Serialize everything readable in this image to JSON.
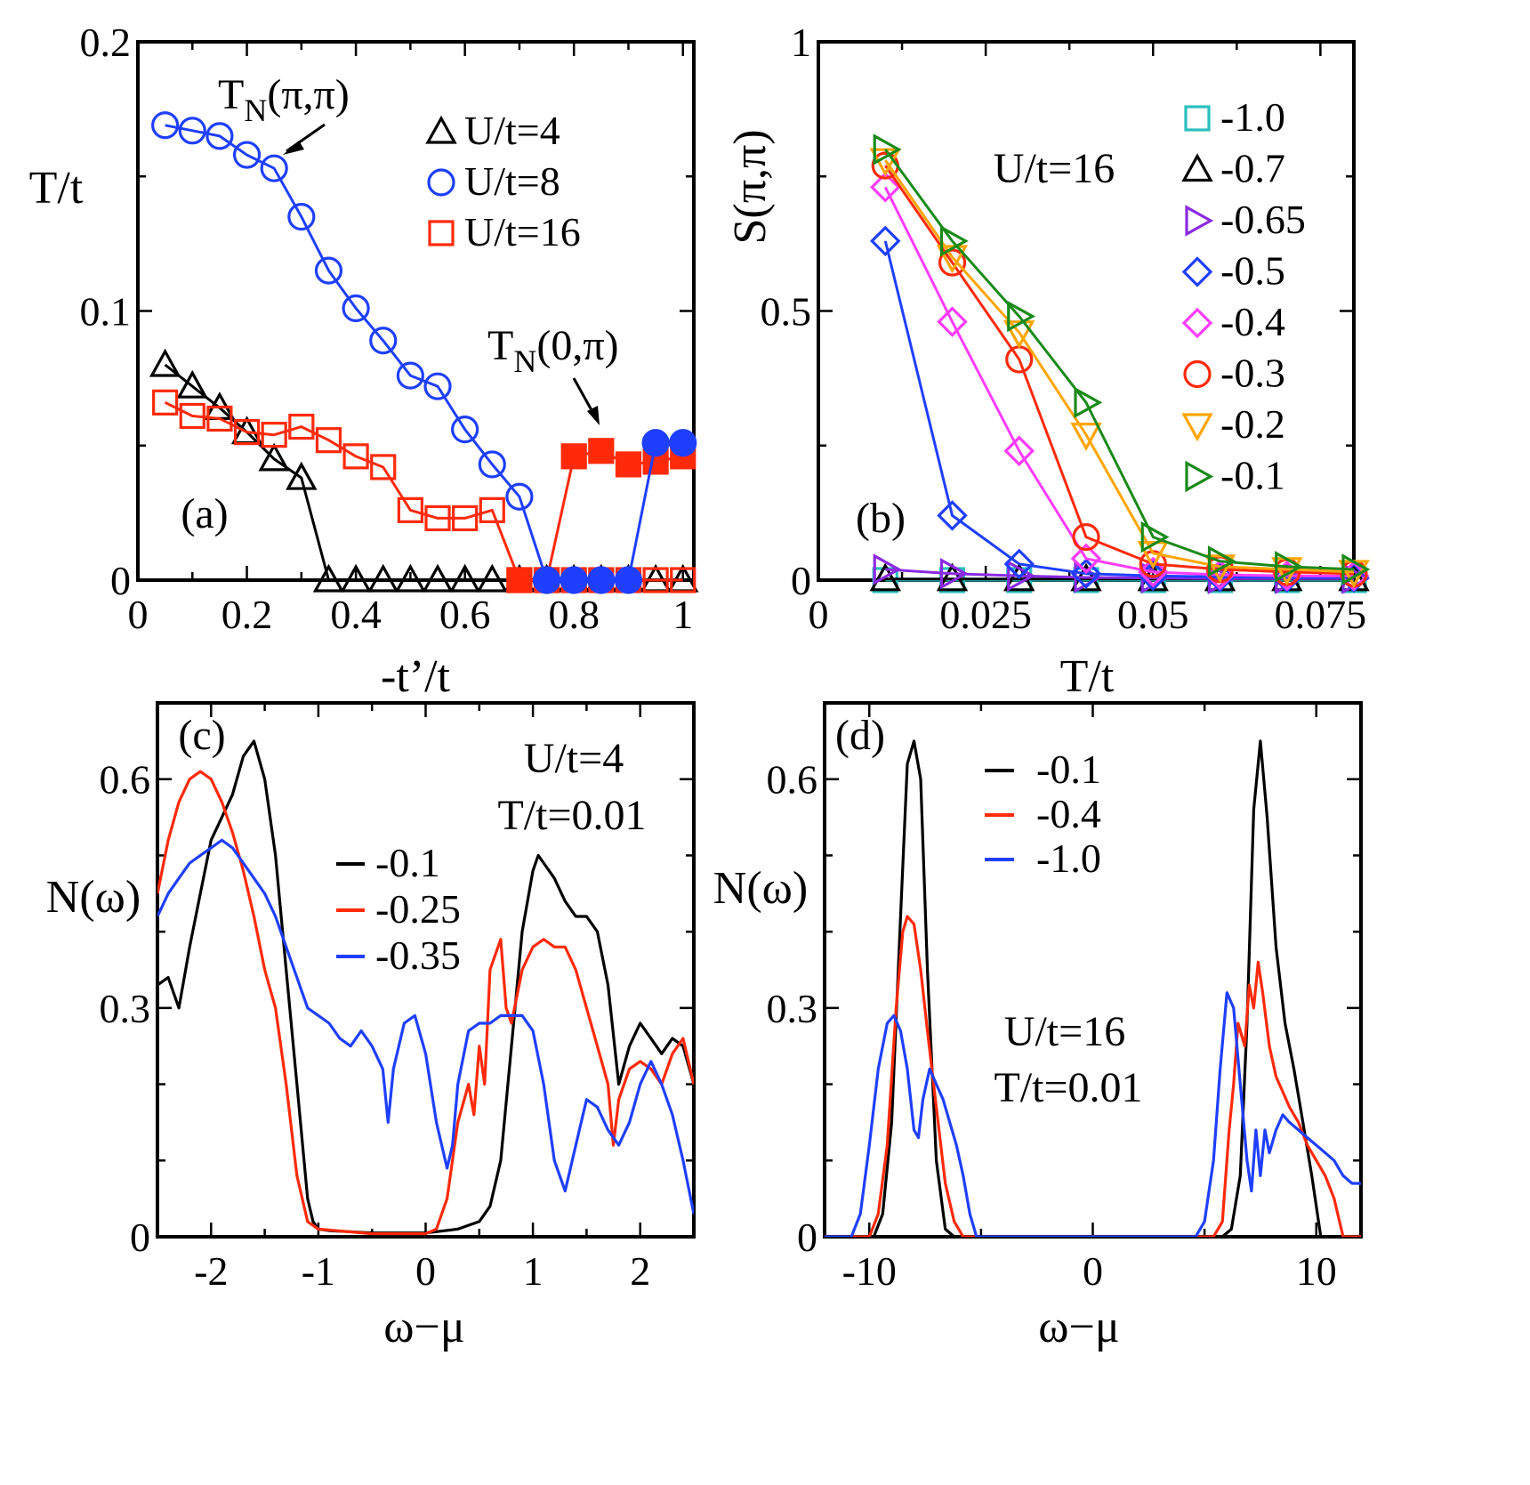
{
  "colors": {
    "black": "#000000",
    "blue": "#1f3fff",
    "red": "#ff2a0a",
    "cyan": "#2bbfbf",
    "purple": "#8a2be2",
    "magenta": "#ff3cff",
    "orange": "#ffa500",
    "green": "#1a8a1a"
  },
  "chart_data": [
    {
      "id": "a",
      "type": "scatter",
      "panel_label": "(a)",
      "xlabel": "-t’/t",
      "ylabel": "T/t",
      "xlim": [
        0,
        1.02
      ],
      "ylim": [
        0,
        0.2
      ],
      "xticks": [
        0,
        0.2,
        0.4,
        0.6,
        0.8,
        1
      ],
      "xtick_labels": [
        "0",
        "0.2",
        "0.4",
        "0.6",
        "0.8",
        "1"
      ],
      "yticks": [
        0,
        0.1,
        0.2
      ],
      "ytick_labels": [
        "0",
        "0.1",
        "0.2"
      ],
      "annotations": [
        {
          "base": "T",
          "sub": "N",
          "rest": "(π,π)"
        },
        {
          "base": "T",
          "sub": "N",
          "rest": "(0,π)"
        }
      ],
      "series": [
        {
          "name": "U/t=4",
          "color": "#000000",
          "marker": "triangle",
          "filled": false,
          "x": [
            0.05,
            0.1,
            0.15,
            0.2,
            0.25,
            0.3,
            0.35,
            0.4,
            0.45,
            0.5,
            0.55,
            0.6,
            0.65,
            0.7,
            0.75,
            0.8,
            0.85,
            0.9,
            0.95,
            1.0
          ],
          "y": [
            0.08,
            0.072,
            0.064,
            0.055,
            0.045,
            0.038,
            0,
            0,
            0,
            0,
            0,
            0,
            0,
            0,
            0,
            0,
            0,
            0,
            0,
            0
          ]
        },
        {
          "name": "U/t=8",
          "color": "#1f3fff",
          "marker": "circle",
          "filled": false,
          "x": [
            0.05,
            0.1,
            0.15,
            0.2,
            0.25,
            0.3,
            0.35,
            0.4,
            0.45,
            0.5,
            0.55,
            0.6,
            0.65,
            0.7,
            0.75
          ],
          "y": [
            0.169,
            0.167,
            0.165,
            0.158,
            0.153,
            0.135,
            0.115,
            0.101,
            0.089,
            0.076,
            0.072,
            0.056,
            0.043,
            0.031,
            0
          ]
        },
        {
          "name": "U/t=16",
          "color": "#ff2a0a",
          "marker": "square",
          "filled": false,
          "x": [
            0.05,
            0.1,
            0.15,
            0.2,
            0.25,
            0.3,
            0.35,
            0.4,
            0.45,
            0.5,
            0.55,
            0.6,
            0.65,
            0.7,
            0.75,
            0.8,
            0.85,
            0.9,
            0.95,
            1.0
          ],
          "y": [
            0.066,
            0.061,
            0.06,
            0.055,
            0.054,
            0.057,
            0.052,
            0.046,
            0.042,
            0.026,
            0.023,
            0.023,
            0.026,
            0,
            0,
            0,
            0,
            0,
            0,
            0
          ]
        },
        {
          "name": "",
          "color": "#ff2a0a",
          "marker": "square",
          "filled": true,
          "x": [
            0.7,
            0.75,
            0.8,
            0.85,
            0.9,
            0.95,
            1.0
          ],
          "y": [
            0,
            0,
            0.046,
            0.048,
            0.043,
            0.044,
            0.046
          ]
        },
        {
          "name": "",
          "color": "#1f3fff",
          "marker": "circle",
          "filled": true,
          "x": [
            0.75,
            0.8,
            0.85,
            0.9,
            0.95,
            1.0
          ],
          "y": [
            0,
            0,
            0,
            0,
            0.051,
            0.051
          ]
        }
      ]
    },
    {
      "id": "b",
      "type": "scatter",
      "panel_label": "(b)",
      "xlabel": "T/t",
      "ylabel": "S(π,π)",
      "xlim": [
        0,
        0.08
      ],
      "ylim": [
        0,
        1
      ],
      "xticks": [
        0,
        0.025,
        0.05,
        0.075
      ],
      "xtick_labels": [
        "0",
        "0.025",
        "0.05",
        "0.075"
      ],
      "yticks": [
        0,
        0.5,
        1
      ],
      "ytick_labels": [
        "0",
        "0.5",
        "1"
      ],
      "annotation": "U/t=16",
      "series": [
        {
          "name": "-1.0",
          "color": "#2bbfbf",
          "marker": "square",
          "x": [
            0.01,
            0.02,
            0.03,
            0.04,
            0.05,
            0.06,
            0.07,
            0.08
          ],
          "y": [
            0.0,
            0.0,
            0.0,
            0.0,
            0.0,
            0.0,
            0.0,
            0.0
          ]
        },
        {
          "name": "-0.7",
          "color": "#000000",
          "marker": "triangle-up",
          "x": [
            0.01,
            0.02,
            0.03,
            0.04,
            0.05,
            0.06,
            0.07,
            0.08
          ],
          "y": [
            0.002,
            0.002,
            0.002,
            0.002,
            0.002,
            0.002,
            0.002,
            0.002
          ]
        },
        {
          "name": "-0.65",
          "color": "#8a2be2",
          "marker": "triangle-right",
          "x": [
            0.01,
            0.02,
            0.03,
            0.04,
            0.05,
            0.06,
            0.07,
            0.08
          ],
          "y": [
            0.02,
            0.012,
            0.008,
            0.005,
            0.004,
            0.003,
            0.003,
            0.003
          ]
        },
        {
          "name": "-0.5",
          "color": "#1f3fff",
          "marker": "diamond",
          "x": [
            0.01,
            0.02,
            0.03,
            0.04,
            0.05,
            0.06,
            0.07,
            0.08
          ],
          "y": [
            0.63,
            0.12,
            0.03,
            0.012,
            0.008,
            0.006,
            0.005,
            0.005
          ]
        },
        {
          "name": "-0.4",
          "color": "#ff3cff",
          "marker": "diamond",
          "x": [
            0.01,
            0.02,
            0.03,
            0.04,
            0.05,
            0.06,
            0.07,
            0.08
          ],
          "y": [
            0.73,
            0.48,
            0.24,
            0.04,
            0.015,
            0.01,
            0.008,
            0.008
          ]
        },
        {
          "name": "-0.3",
          "color": "#ff2a0a",
          "marker": "circle",
          "x": [
            0.01,
            0.02,
            0.03,
            0.04,
            0.05,
            0.06,
            0.07,
            0.08
          ],
          "y": [
            0.77,
            0.59,
            0.41,
            0.08,
            0.03,
            0.02,
            0.015,
            0.012
          ]
        },
        {
          "name": "-0.2",
          "color": "#ffa500",
          "marker": "triangle-down",
          "x": [
            0.01,
            0.02,
            0.03,
            0.04,
            0.05,
            0.06,
            0.07,
            0.08
          ],
          "y": [
            0.78,
            0.6,
            0.46,
            0.27,
            0.05,
            0.025,
            0.02,
            0.015
          ]
        },
        {
          "name": "-0.1",
          "color": "#1a8a1a",
          "marker": "triangle-right",
          "x": [
            0.01,
            0.02,
            0.03,
            0.04,
            0.05,
            0.06,
            0.07,
            0.08
          ],
          "y": [
            0.8,
            0.63,
            0.49,
            0.33,
            0.08,
            0.035,
            0.025,
            0.02
          ]
        }
      ]
    },
    {
      "id": "c",
      "type": "line",
      "panel_label": "(c)",
      "xlabel": "ω−μ",
      "ylabel": "N(ω)",
      "xlim": [
        -2.5,
        2.5
      ],
      "ylim": [
        0,
        0.7
      ],
      "xticks": [
        -2,
        -1,
        0,
        1,
        2
      ],
      "xtick_labels": [
        "-2",
        "-1",
        "0",
        "1",
        "2"
      ],
      "yticks": [
        0,
        0.3,
        0.6
      ],
      "ytick_labels": [
        "0",
        "0.3",
        "0.6"
      ],
      "annotation_lines": [
        "U/t=4",
        "T/t=0.01"
      ],
      "series": [
        {
          "name": "-0.1",
          "color": "#000000",
          "x": [
            -2.5,
            -2.4,
            -2.3,
            -2.2,
            -2.1,
            -2.0,
            -1.9,
            -1.8,
            -1.7,
            -1.6,
            -1.5,
            -1.4,
            -1.3,
            -1.2,
            -1.1,
            -1.05,
            -1.0,
            -0.9,
            -0.5,
            0,
            0.3,
            0.5,
            0.6,
            0.7,
            0.8,
            0.9,
            1.0,
            1.05,
            1.1,
            1.2,
            1.3,
            1.4,
            1.5,
            1.6,
            1.7,
            1.8,
            1.9,
            2.0,
            2.1,
            2.2,
            2.3,
            2.4,
            2.5
          ],
          "y": [
            0.33,
            0.34,
            0.3,
            0.38,
            0.45,
            0.52,
            0.55,
            0.58,
            0.63,
            0.65,
            0.6,
            0.5,
            0.35,
            0.2,
            0.05,
            0.02,
            0.01,
            0.008,
            0.005,
            0.005,
            0.01,
            0.02,
            0.04,
            0.1,
            0.25,
            0.4,
            0.48,
            0.5,
            0.49,
            0.47,
            0.44,
            0.42,
            0.42,
            0.4,
            0.33,
            0.2,
            0.25,
            0.28,
            0.26,
            0.24,
            0.26,
            0.25,
            0.2
          ]
        },
        {
          "name": "-0.25",
          "color": "#ff2a0a",
          "x": [
            -2.5,
            -2.4,
            -2.3,
            -2.2,
            -2.1,
            -2.0,
            -1.9,
            -1.8,
            -1.7,
            -1.6,
            -1.5,
            -1.4,
            -1.3,
            -1.2,
            -1.1,
            -1.0,
            -0.5,
            0,
            0.1,
            0.2,
            0.3,
            0.4,
            0.45,
            0.5,
            0.55,
            0.6,
            0.7,
            0.75,
            0.8,
            0.9,
            1.0,
            1.1,
            1.2,
            1.3,
            1.4,
            1.5,
            1.6,
            1.7,
            1.75,
            1.8,
            1.9,
            2.0,
            2.1,
            2.2,
            2.3,
            2.4,
            2.5
          ],
          "y": [
            0.45,
            0.52,
            0.57,
            0.6,
            0.61,
            0.6,
            0.57,
            0.53,
            0.48,
            0.42,
            0.35,
            0.3,
            0.2,
            0.08,
            0.02,
            0.01,
            0.004,
            0.004,
            0.01,
            0.05,
            0.15,
            0.2,
            0.16,
            0.25,
            0.2,
            0.35,
            0.39,
            0.3,
            0.28,
            0.35,
            0.38,
            0.39,
            0.38,
            0.38,
            0.35,
            0.3,
            0.25,
            0.2,
            0.12,
            0.18,
            0.22,
            0.23,
            0.22,
            0.2,
            0.24,
            0.26,
            0.2
          ]
        },
        {
          "name": "-0.35",
          "color": "#1f3fff",
          "x": [
            -2.5,
            -2.4,
            -2.3,
            -2.2,
            -2.1,
            -2.0,
            -1.9,
            -1.8,
            -1.7,
            -1.6,
            -1.5,
            -1.4,
            -1.3,
            -1.2,
            -1.1,
            -1.0,
            -0.9,
            -0.8,
            -0.7,
            -0.6,
            -0.5,
            -0.4,
            -0.35,
            -0.3,
            -0.2,
            -0.1,
            0,
            0.1,
            0.2,
            0.25,
            0.3,
            0.4,
            0.5,
            0.6,
            0.7,
            0.8,
            0.9,
            1.0,
            1.1,
            1.2,
            1.3,
            1.4,
            1.5,
            1.6,
            1.7,
            1.8,
            1.9,
            2.0,
            2.1,
            2.2,
            2.3,
            2.4,
            2.5
          ],
          "y": [
            0.42,
            0.45,
            0.47,
            0.49,
            0.5,
            0.51,
            0.52,
            0.51,
            0.49,
            0.47,
            0.45,
            0.42,
            0.38,
            0.34,
            0.3,
            0.29,
            0.28,
            0.26,
            0.25,
            0.27,
            0.25,
            0.22,
            0.15,
            0.22,
            0.28,
            0.29,
            0.24,
            0.15,
            0.09,
            0.12,
            0.2,
            0.27,
            0.28,
            0.28,
            0.29,
            0.29,
            0.29,
            0.27,
            0.2,
            0.1,
            0.06,
            0.12,
            0.18,
            0.17,
            0.14,
            0.12,
            0.15,
            0.2,
            0.23,
            0.2,
            0.16,
            0.1,
            0.03
          ]
        }
      ]
    },
    {
      "id": "d",
      "type": "line",
      "panel_label": "(d)",
      "xlabel": "ω−μ",
      "ylabel": "N(ω)",
      "xlim": [
        -12,
        12
      ],
      "ylim": [
        0,
        0.7
      ],
      "xticks": [
        -10,
        0,
        10
      ],
      "xtick_labels": [
        "-10",
        "0",
        "10"
      ],
      "yticks": [
        0,
        0.3,
        0.6
      ],
      "ytick_labels": [
        "0",
        "0.3",
        "0.6"
      ],
      "annotation_lines": [
        "U/t=16",
        "T/t=0.01"
      ],
      "series": [
        {
          "name": "-0.1",
          "color": "#000000",
          "x": [
            -12,
            -9.8,
            -9.4,
            -9.0,
            -8.6,
            -8.3,
            -8.0,
            -7.7,
            -7.4,
            -7.0,
            -6.6,
            -6.2,
            0,
            5.8,
            6.2,
            6.6,
            6.9,
            7.2,
            7.5,
            7.8,
            8.2,
            8.6,
            9.0,
            9.4,
            9.8,
            10.2,
            12
          ],
          "y": [
            0,
            0,
            0.03,
            0.15,
            0.42,
            0.62,
            0.65,
            0.6,
            0.35,
            0.1,
            0.01,
            0,
            0,
            0,
            0.01,
            0.08,
            0.28,
            0.56,
            0.65,
            0.55,
            0.38,
            0.28,
            0.22,
            0.15,
            0.08,
            0,
            0
          ]
        },
        {
          "name": "-0.4",
          "color": "#ff2a0a",
          "x": [
            -12,
            -10.0,
            -9.6,
            -9.2,
            -8.8,
            -8.5,
            -8.3,
            -8.0,
            -7.7,
            -7.4,
            -7.0,
            -6.6,
            -6.2,
            -5.8,
            0,
            5.4,
            5.8,
            6.1,
            6.3,
            6.5,
            6.8,
            7.0,
            7.2,
            7.4,
            7.6,
            7.9,
            8.2,
            8.5,
            8.8,
            9.2,
            9.6,
            10.0,
            10.4,
            10.8,
            11.2,
            12
          ],
          "y": [
            0,
            0,
            0.03,
            0.12,
            0.3,
            0.4,
            0.42,
            0.41,
            0.35,
            0.27,
            0.17,
            0.07,
            0.02,
            0,
            0,
            0,
            0.02,
            0.14,
            0.2,
            0.28,
            0.25,
            0.33,
            0.3,
            0.36,
            0.32,
            0.25,
            0.21,
            0.19,
            0.17,
            0.15,
            0.12,
            0.1,
            0.08,
            0.05,
            0.0,
            0
          ]
        },
        {
          "name": "-1.0",
          "color": "#1f3fff",
          "x": [
            -12,
            -10.8,
            -10.4,
            -10.0,
            -9.6,
            -9.2,
            -8.9,
            -8.6,
            -8.3,
            -8.0,
            -7.8,
            -7.6,
            -7.3,
            -7.0,
            -6.7,
            -6.4,
            -6.1,
            -5.8,
            -5.5,
            -5.2,
            0,
            4.6,
            5.0,
            5.4,
            5.7,
            6.0,
            6.3,
            6.6,
            6.9,
            7.1,
            7.3,
            7.5,
            7.7,
            7.9,
            8.2,
            8.5,
            8.8,
            9.2,
            9.6,
            10.0,
            10.4,
            10.8,
            11.2,
            11.6,
            12
          ],
          "y": [
            0,
            0,
            0.03,
            0.12,
            0.22,
            0.28,
            0.29,
            0.27,
            0.22,
            0.14,
            0.13,
            0.18,
            0.22,
            0.2,
            0.18,
            0.15,
            0.12,
            0.08,
            0.03,
            0,
            0,
            0,
            0.02,
            0.1,
            0.22,
            0.32,
            0.3,
            0.2,
            0.1,
            0.06,
            0.14,
            0.08,
            0.14,
            0.11,
            0.14,
            0.16,
            0.15,
            0.14,
            0.13,
            0.12,
            0.11,
            0.1,
            0.08,
            0.07,
            0.07
          ]
        }
      ]
    }
  ]
}
